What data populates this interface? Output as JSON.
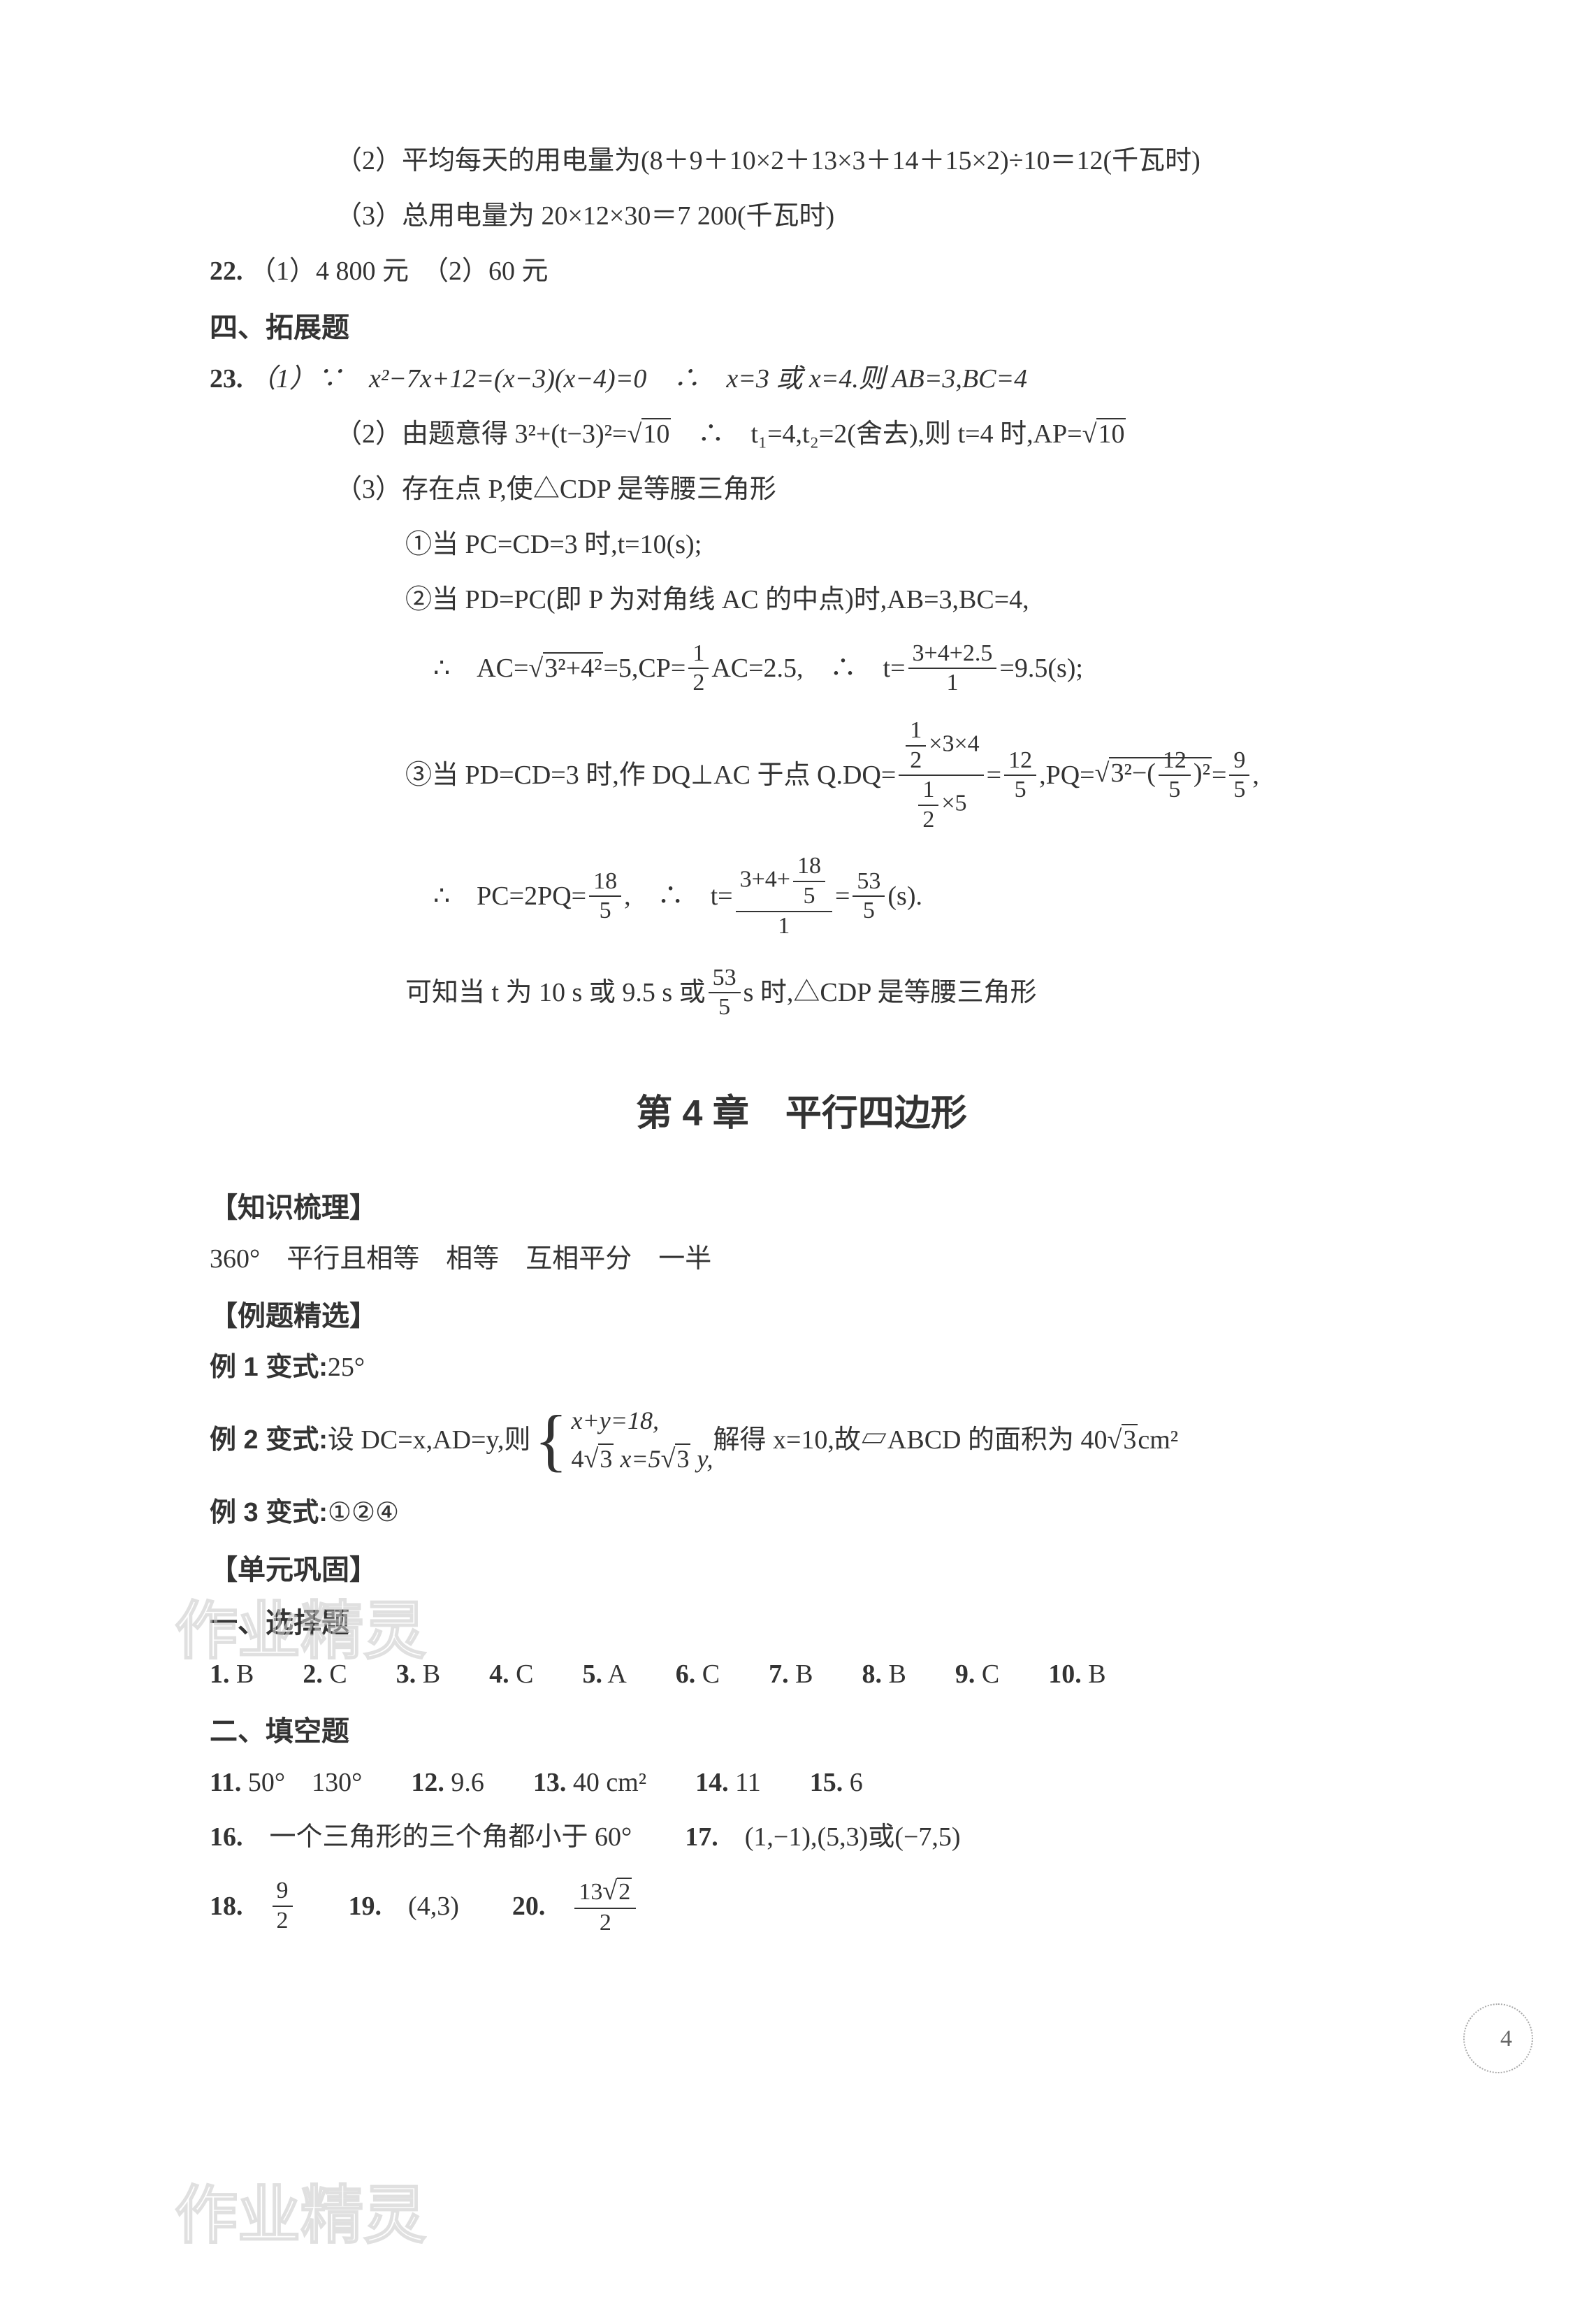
{
  "colors": {
    "text": "#333333",
    "bg": "#ffffff",
    "watermark_stroke": "#cccccc"
  },
  "fonts": {
    "body_size": 38,
    "title_size": 52
  },
  "top_section": {
    "l1": "（2）平均每天的用电量为(8＋9＋10×2＋13×3＋14＋15×2)÷10＝12(千瓦时)",
    "l2": "（3）总用电量为 20×12×30＝7 200(千瓦时)",
    "q22": "22.",
    "q22_text": "（1）4 800 元　（2）60 元",
    "sec4": "四、拓展题",
    "q23": "23.",
    "q23_1_a": "（1）∵　x²−7x+12=(x−3)(x−4)=0　∴　x=3 或 x=4.则 AB=3,BC=4",
    "q23_2_a": "（2）由题意得 3²+(t−3)²=",
    "q23_2_b": "　∴　t₁=4,t₂=2(舍去),则 t=4 时,AP=",
    "q23_3": "（3）存在点 P,使△CDP 是等腰三角形",
    "q23_3_1": "①当 PC=CD=3 时,t=10(s);",
    "q23_3_2": "②当 PD=PC(即 P 为对角线 AC 的中点)时,AB=3,BC=4,",
    "q23_3_2b_a": "∴　AC=",
    "q23_3_2b_b": "=5,CP=",
    "q23_3_2b_c": "AC=2.5,　∴　t=",
    "q23_3_2b_d": "=9.5(s);",
    "q23_3_3_a": "③当 PD=CD=3 时,作 DQ⊥AC 于点 Q.DQ=",
    "q23_3_3_b": "=",
    "q23_3_3_c": ",PQ=",
    "q23_3_3_d": "=",
    "q23_3_3_e": ",",
    "q23_3_4_a": "∴　PC=2PQ=",
    "q23_3_4_b": ",　∴　t=",
    "q23_3_4_c": "=",
    "q23_3_4_d": "(s).",
    "q23_3_5_a": "可知当 t 为 10 s 或 9.5 s 或",
    "q23_3_5_b": " s 时,△CDP 是等腰三角形",
    "sqrt10": "10",
    "sqrt_3242": "3²+4²",
    "frac_12": {
      "n": "1",
      "d": "2"
    },
    "frac_t": {
      "n": "3+4+2.5",
      "d": "1"
    },
    "frac_dq_n_n": "1",
    "frac_dq_n_d": "2",
    "frac_dq_n_tail": "×3×4",
    "frac_dq_d_n": "1",
    "frac_dq_d_d": "2",
    "frac_dq_d_tail": "×5",
    "frac_125": {
      "n": "12",
      "d": "5"
    },
    "frac_95": {
      "n": "9",
      "d": "5"
    },
    "frac_185": {
      "n": "18",
      "d": "5"
    },
    "frac_t2_n_a": "3+4+",
    "frac_t2_n_n": "18",
    "frac_t2_n_d": "5",
    "frac_t2_d": "1",
    "frac_535": {
      "n": "53",
      "d": "5"
    },
    "sqrt_pq_a": "3²−(",
    "sqrt_pq_b": ")²"
  },
  "chapter": {
    "title": "第 4 章　平行四边形"
  },
  "ch4": {
    "sec1": "【知识梳理】",
    "sec1_text": "360°　平行且相等　相等　互相平分　一半",
    "sec2": "【例题精选】",
    "ex1": "例 1 变式:",
    "ex1_ans": "25°",
    "ex2_a": "例 2 变式:",
    "ex2_b": "设 DC=x,AD=y,则",
    "ex2_brace1": "x+y=18,",
    "ex2_brace2_a": "4",
    "ex2_brace2_sqrt": "3",
    "ex2_brace2_b": " x=5",
    "ex2_brace2_sqrt2": "3",
    "ex2_brace2_c": " y,",
    "ex2_c": "解得 x=10,故▱ABCD 的面积为 40",
    "ex2_sqrt": "3",
    "ex2_d": " cm²",
    "ex3": "例 3 变式:",
    "ex3_ans": "①②④",
    "sec3": "【单元巩固】",
    "sub1": "一、选择题",
    "mc": [
      {
        "n": "1.",
        "a": "B"
      },
      {
        "n": "2.",
        "a": "C"
      },
      {
        "n": "3.",
        "a": "B"
      },
      {
        "n": "4.",
        "a": "C"
      },
      {
        "n": "5.",
        "a": "A"
      },
      {
        "n": "6.",
        "a": "C"
      },
      {
        "n": "7.",
        "a": "B"
      },
      {
        "n": "8.",
        "a": "B"
      },
      {
        "n": "9.",
        "a": "C"
      },
      {
        "n": "10.",
        "a": "B"
      }
    ],
    "sub2": "二、填空题",
    "fb1": [
      {
        "n": "11.",
        "a": "50°　130°"
      },
      {
        "n": "12.",
        "a": "9.6"
      },
      {
        "n": "13.",
        "a": "40 cm²"
      },
      {
        "n": "14.",
        "a": "11"
      },
      {
        "n": "15.",
        "a": "6"
      }
    ],
    "fb2_16n": "16.",
    "fb2_16a": "一个三角形的三个角都小于 60°",
    "fb2_17n": "17.",
    "fb2_17a": "(1,−1),(5,3)或(−7,5)",
    "fb3_18n": "18.",
    "fb3_18_n": "9",
    "fb3_18_d": "2",
    "fb3_19n": "19.",
    "fb3_19a": "(4,3)",
    "fb3_20n": "20.",
    "fb3_20_n_a": "13",
    "fb3_20_n_sqrt": "2",
    "fb3_20_d": "2"
  },
  "page_number": "4",
  "watermark": "作业精灵"
}
